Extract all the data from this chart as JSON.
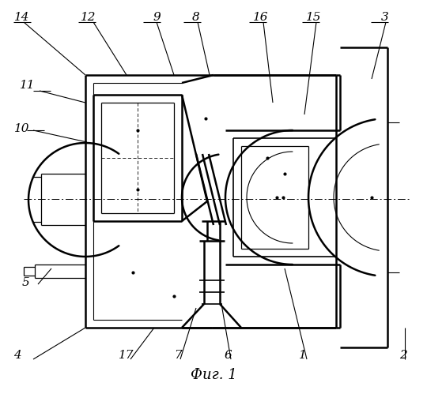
{
  "title": "Фиг. 1",
  "bg_color": "#ffffff",
  "lc": "#000000"
}
